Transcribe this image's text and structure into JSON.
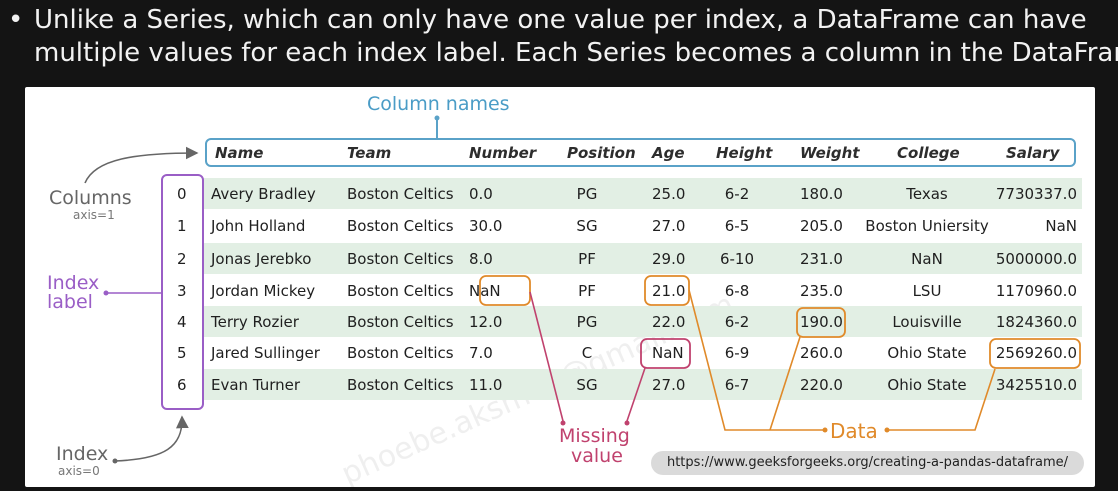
{
  "caption": {
    "bullet": "•",
    "line1": "Unlike a Series, which can only have one value per index, a DataFrame can have",
    "line2": "multiple values for each index label. Each Series becomes a column in the DataFrame."
  },
  "labels": {
    "column_names": "Column names",
    "columns": "Columns",
    "columns_axis": "axis=1",
    "index_label_1": "Index",
    "index_label_2": "label",
    "index": "Index",
    "index_axis": "axis=0",
    "missing_1": "Missing",
    "missing_2": "value",
    "data": "Data"
  },
  "url": "https://www.geeksforgeeks.org/creating-a-pandas-dataframe/",
  "watermark": "phoebe.aksmey@gmail.com",
  "table": {
    "columns": [
      "Name",
      "Team",
      "Number",
      "Position",
      "Age",
      "Height",
      "Weight",
      "College",
      "Salary"
    ],
    "index": [
      "0",
      "1",
      "2",
      "3",
      "4",
      "5",
      "6"
    ],
    "rows": [
      [
        "Avery Bradley",
        "Boston Celtics",
        "0.0",
        "PG",
        "25.0",
        "6-2",
        "180.0",
        "Texas",
        "7730337.0"
      ],
      [
        "John Holland",
        "Boston Celtics",
        "30.0",
        "SG",
        "27.0",
        "6-5",
        "205.0",
        "Boston Uniersity",
        "NaN"
      ],
      [
        "Jonas Jerebko",
        "Boston Celtics",
        "8.0",
        "PF",
        "29.0",
        "6-10",
        "231.0",
        "NaN",
        "5000000.0"
      ],
      [
        "Jordan Mickey",
        "Boston Celtics",
        "NaN",
        "PF",
        "21.0",
        "6-8",
        "235.0",
        "LSU",
        "1170960.0"
      ],
      [
        "Terry Rozier",
        "Boston Celtics",
        "12.0",
        "PG",
        "22.0",
        "6-2",
        "190.0",
        "Louisville",
        "1824360.0"
      ],
      [
        "Jared Sullinger",
        "Boston Celtics",
        "7.0",
        "C",
        "NaN",
        "6-9",
        "260.0",
        "Ohio State",
        "2569260.0"
      ],
      [
        "Evan Turner",
        "Boston Celtics",
        "11.0",
        "SG",
        "27.0",
        "6-7",
        "220.0",
        "Ohio State",
        "3425510.0"
      ]
    ]
  },
  "colors": {
    "index_accent": "#9a5ec6",
    "header_accent": "#5aa2c8",
    "missing_accent": "#c0426e",
    "data_accent": "#e08a2a",
    "row_shade": "#e2efe4"
  }
}
